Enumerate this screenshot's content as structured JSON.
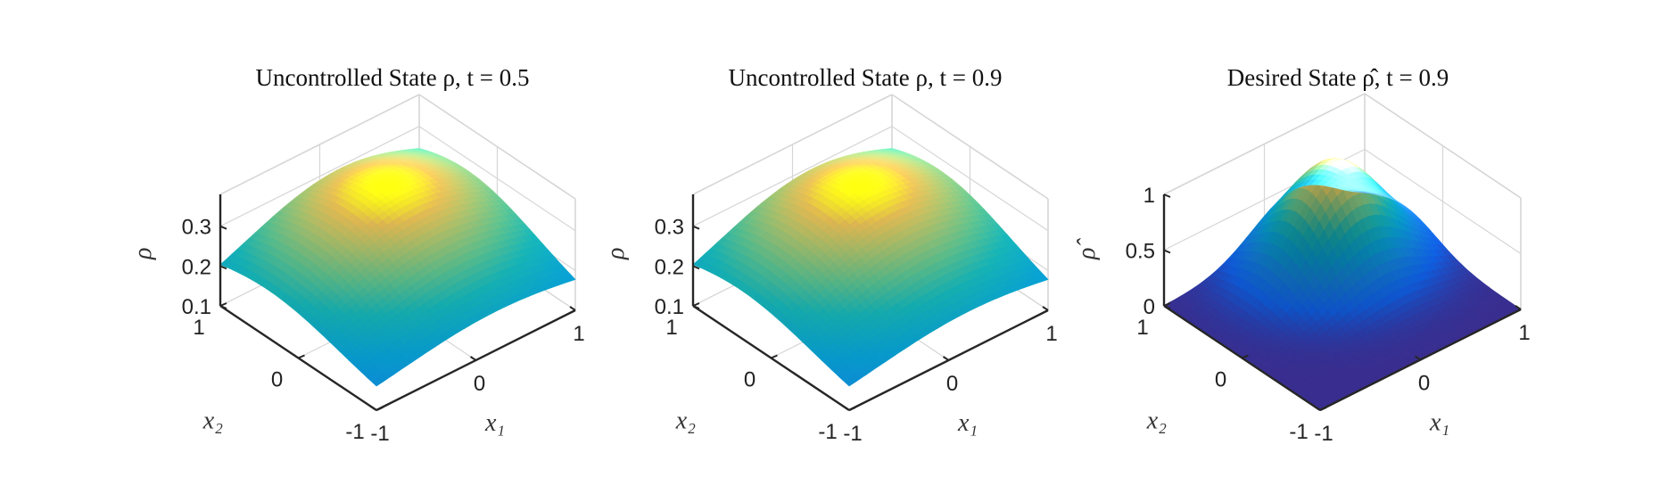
{
  "chart_data": [
    {
      "type": "surface",
      "title": "Uncontrolled State ρ, t = 0.5",
      "xlabel": "x₁",
      "ylabel": "x₂",
      "zlabel": "ρ",
      "x_ticks": [
        "-1",
        "0",
        "1"
      ],
      "y_ticks": [
        "-1",
        "0",
        "1"
      ],
      "z_ticks": [
        "0.1",
        "0.2",
        "0.3"
      ],
      "xlim": [
        -1,
        1
      ],
      "ylim": [
        -1,
        1
      ],
      "zlim": [
        0.1,
        0.38
      ],
      "grid": true,
      "colormap": "parula-like (blue → teal → yellow), lit",
      "surface": {
        "form": "smooth single bump",
        "center": [
          0.2,
          0.4
        ],
        "peak": 0.33,
        "edge_min": 0.13
      }
    },
    {
      "type": "surface",
      "title": "Uncontrolled State ρ, t = 0.9",
      "xlabel": "x₁",
      "ylabel": "x₂",
      "zlabel": "ρ",
      "x_ticks": [
        "-1",
        "0",
        "1"
      ],
      "y_ticks": [
        "-1",
        "0",
        "1"
      ],
      "z_ticks": [
        "0.1",
        "0.2",
        "0.3"
      ],
      "xlim": [
        -1,
        1
      ],
      "ylim": [
        -1,
        1
      ],
      "zlim": [
        0.1,
        0.38
      ],
      "grid": true,
      "colormap": "parula-like (blue → teal → yellow), lit",
      "surface": {
        "form": "smooth single bump",
        "center": [
          0.2,
          0.4
        ],
        "peak": 0.33,
        "edge_min": 0.13
      }
    },
    {
      "type": "surface",
      "title": "Desired State ρ̂, t = 0.9",
      "xlabel": "x₁",
      "ylabel": "x₂",
      "zlabel": "ρ̂",
      "x_ticks": [
        "-1",
        "0",
        "1"
      ],
      "y_ticks": [
        "-1",
        "0",
        "1"
      ],
      "z_ticks": [
        "0",
        "0.5",
        "1"
      ],
      "xlim": [
        -1,
        1
      ],
      "ylim": [
        -1,
        1
      ],
      "zlim": [
        0,
        1
      ],
      "grid": true,
      "colormap": "parula-like (dark blue → teal → yellow), lit",
      "surface": {
        "form": "gaussian bump",
        "center": [
          0.3,
          0.5
        ],
        "peak": 0.93,
        "edge_min": 0.0
      }
    }
  ]
}
